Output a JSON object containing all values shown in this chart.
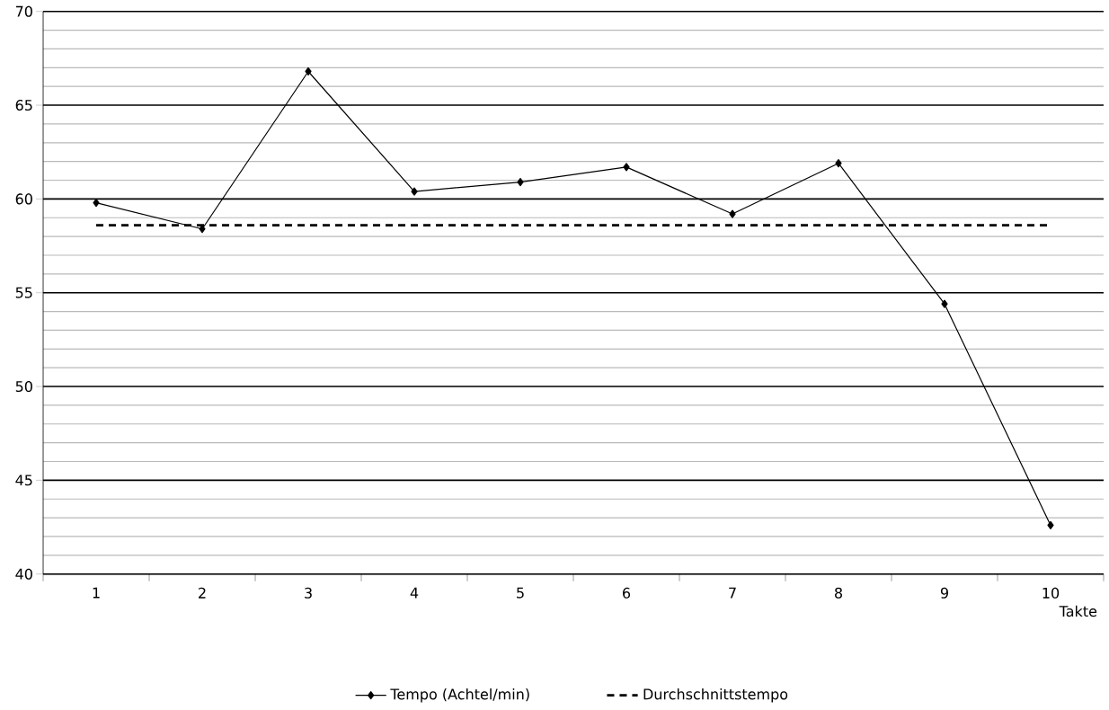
{
  "chart_data": {
    "type": "line",
    "xlabel": "Takte",
    "categories": [
      "1",
      "2",
      "3",
      "4",
      "5",
      "6",
      "7",
      "8",
      "9",
      "10"
    ],
    "series": [
      {
        "name": "Tempo (Achtel/min)",
        "color": "#000000",
        "marker": "diamond",
        "line_style": "solid",
        "values": [
          59.8,
          58.4,
          66.8,
          60.4,
          60.9,
          61.7,
          59.2,
          61.9,
          54.4,
          42.6
        ]
      },
      {
        "name": "Durchschnittstempo",
        "color": "#000000",
        "marker": "none",
        "line_style": "dashed",
        "values": [
          58.6,
          58.6,
          58.6,
          58.6,
          58.6,
          58.6,
          58.6,
          58.6,
          58.6,
          58.6
        ]
      }
    ],
    "ylim": [
      40,
      70
    ],
    "yticks": [
      40,
      45,
      50,
      55,
      60,
      65,
      70
    ],
    "grid": "y",
    "legend": "bottom"
  }
}
